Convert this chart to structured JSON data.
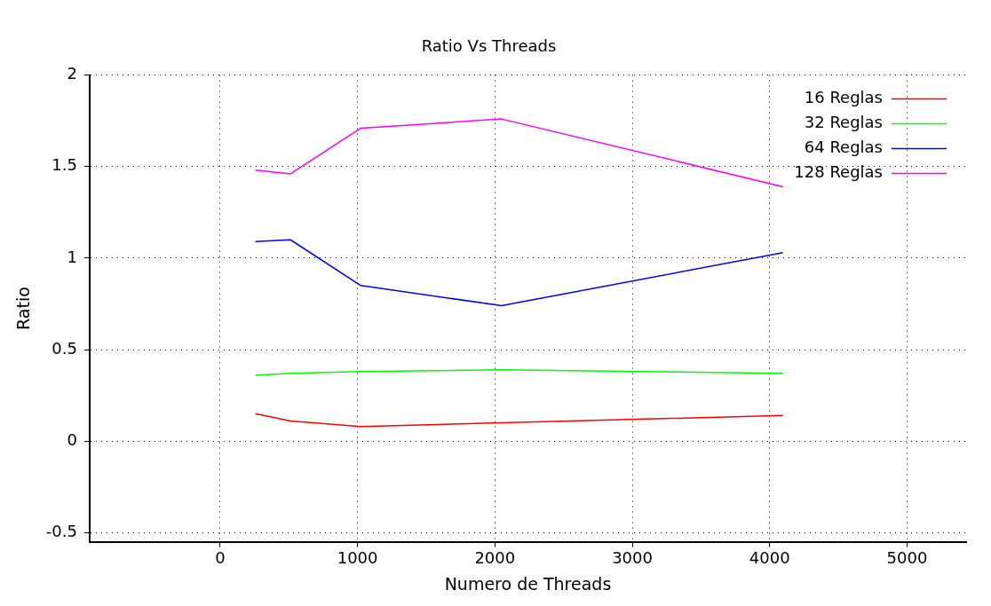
{
  "chart_data": {
    "type": "line",
    "title": "Ratio Vs Threads",
    "xlabel": "Numero de Threads",
    "ylabel": "Ratio",
    "x": [
      256,
      512,
      1024,
      2048,
      4096
    ],
    "series": [
      {
        "name": "16 Reglas",
        "color": "#ff0000",
        "values": [
          0.15,
          0.11,
          0.08,
          0.1,
          0.14
        ]
      },
      {
        "name": "32 Reglas",
        "color": "#00ff00",
        "values": [
          0.36,
          0.37,
          0.38,
          0.39,
          0.37
        ]
      },
      {
        "name": "64 Reglas",
        "color": "#0000ff",
        "values": [
          1.09,
          1.1,
          0.85,
          0.74,
          1.03
        ]
      },
      {
        "name": "128 Reglas",
        "color": "#ff00ff",
        "values": [
          1.48,
          1.46,
          1.71,
          1.76,
          1.39
        ]
      }
    ],
    "xlim": [
      -950,
      5430
    ],
    "xticks": [
      0,
      1000,
      2000,
      3000,
      4000,
      5000
    ],
    "ylim": [
      -0.55,
      2
    ],
    "yticks": [
      -0.5,
      0,
      0.5,
      1,
      1.5,
      2
    ],
    "grid": true,
    "legend": "top right",
    "marker": "none",
    "line_style": "solid"
  }
}
